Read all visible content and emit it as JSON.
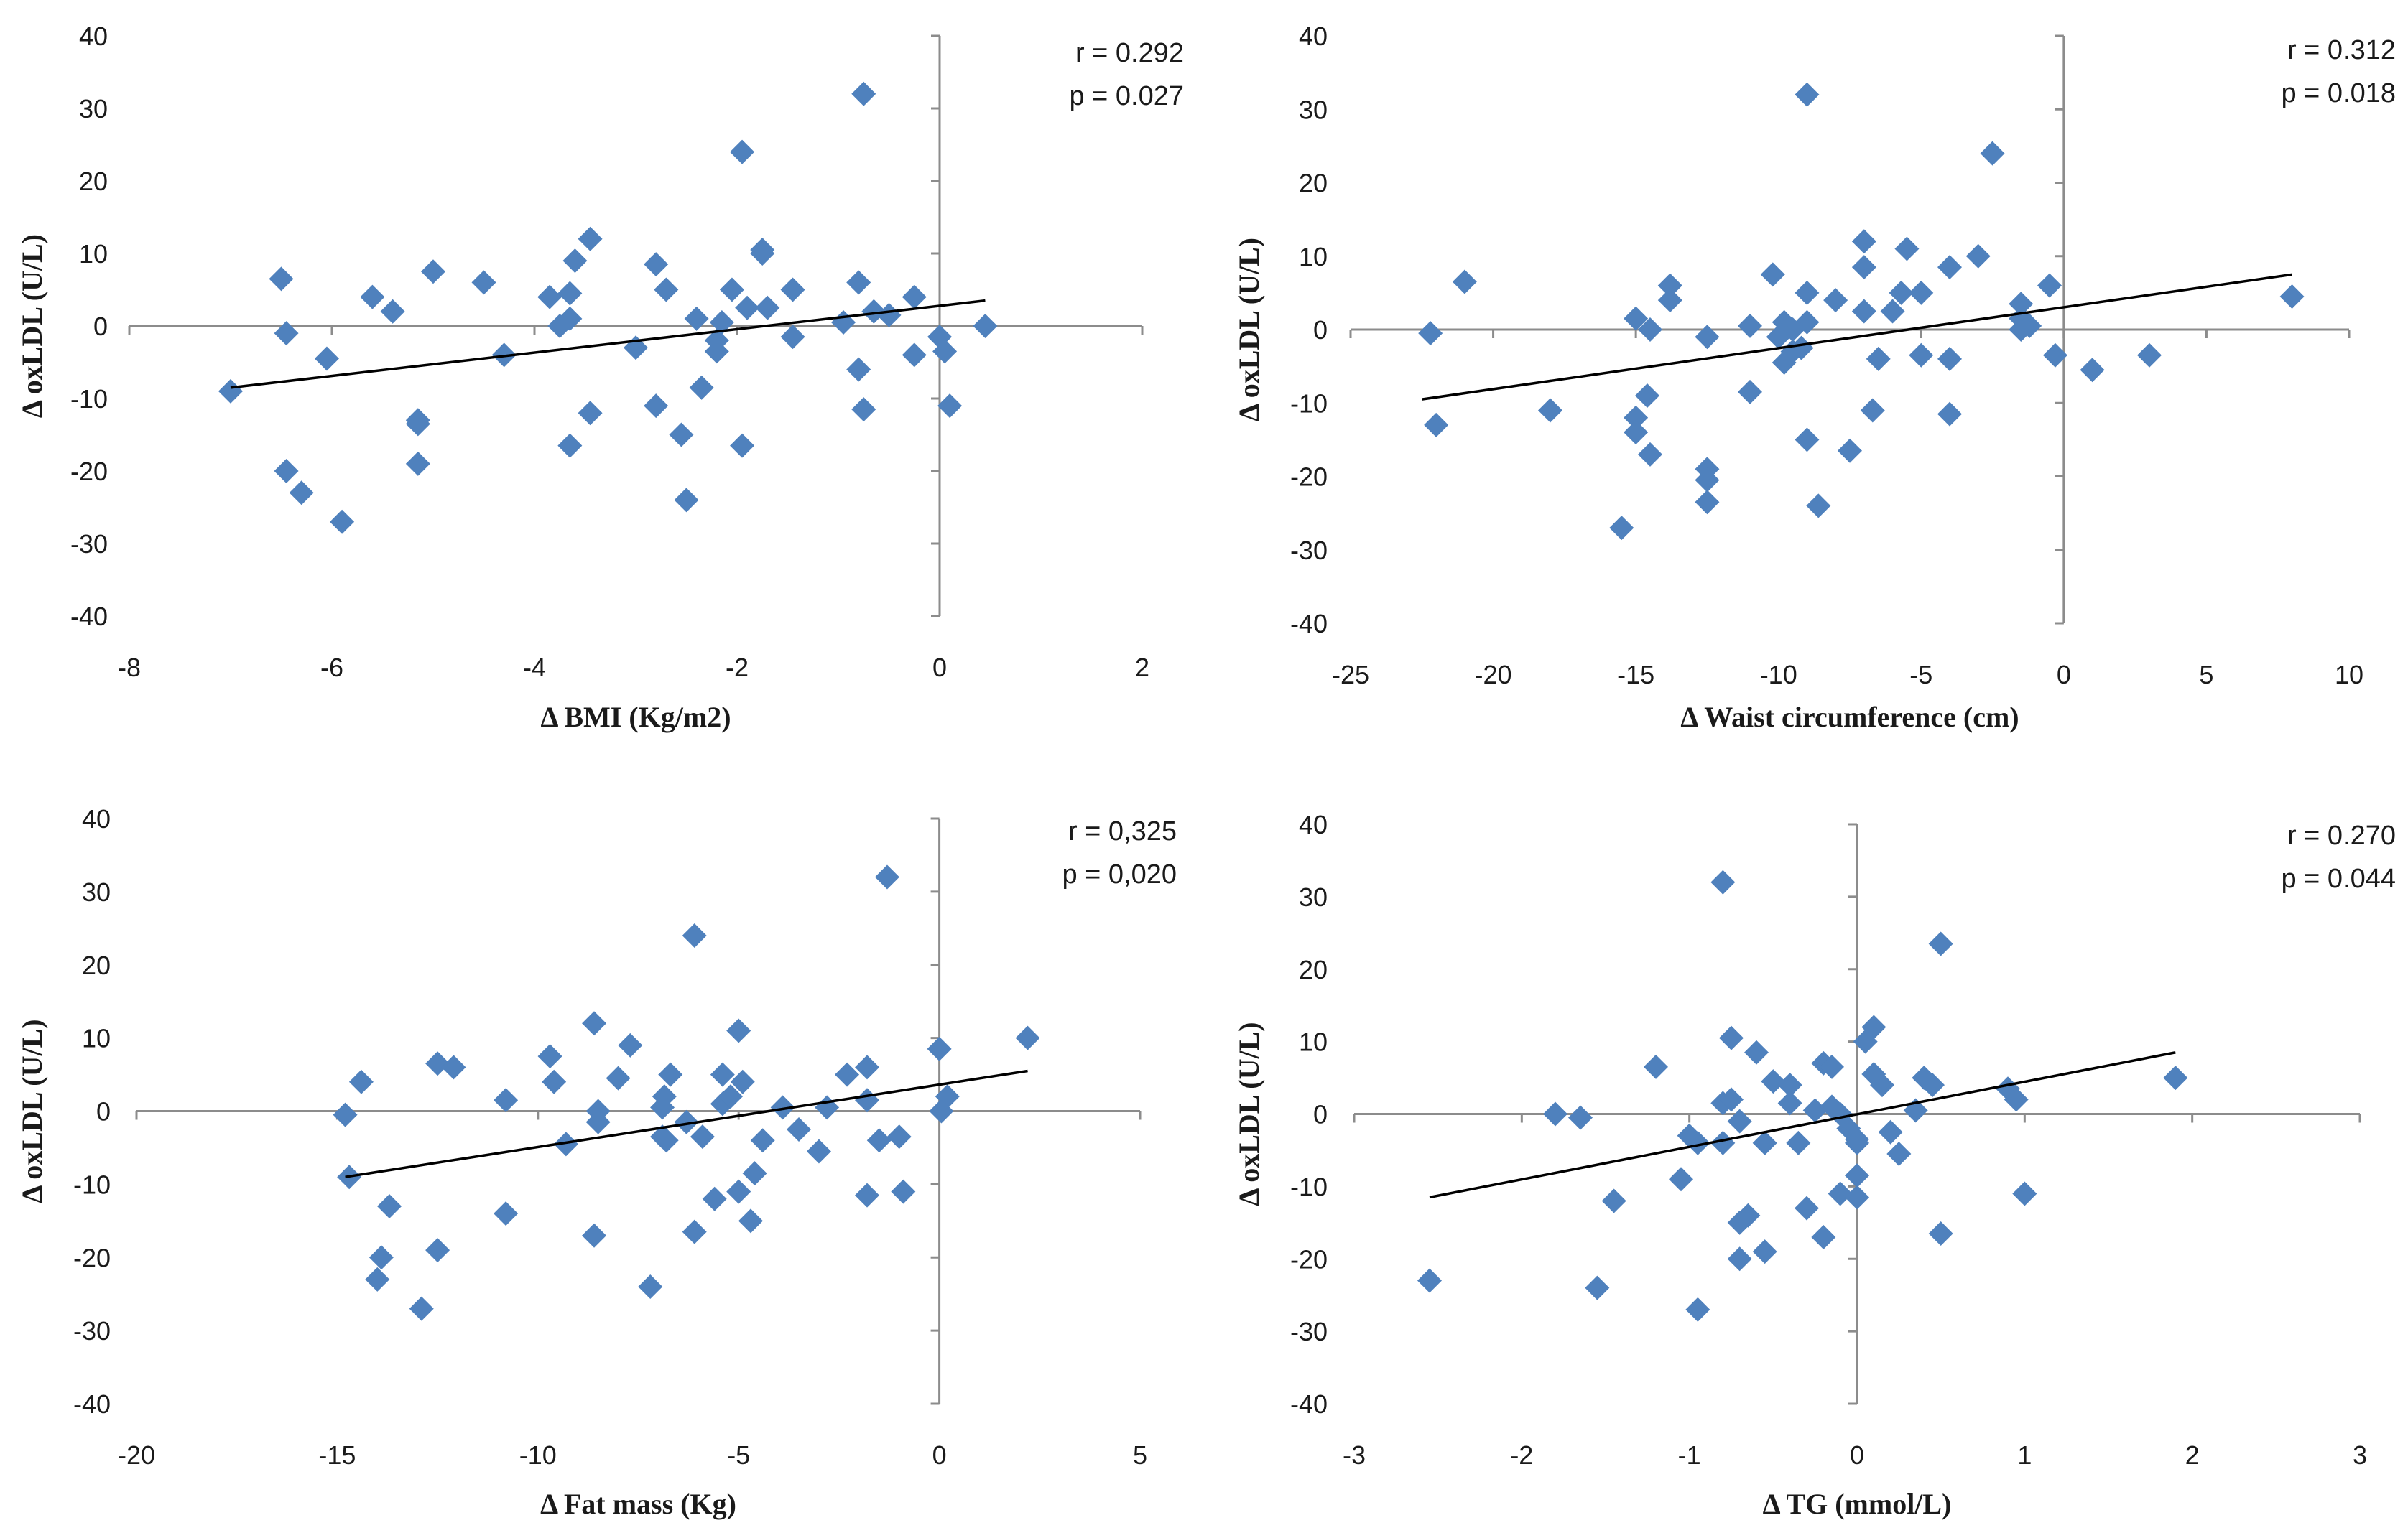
{
  "colors": {
    "marker": "#4f81bd",
    "trend": "#000000",
    "axis": "#8c8c8c"
  },
  "chart_data": [
    {
      "type": "scatter",
      "xlabel": "Δ BMI (Kg/m2)",
      "ylabel": "Δ oxLDL (U/L)",
      "xlim": [
        -8,
        2
      ],
      "ylim": [
        -40,
        40
      ],
      "xticks": [
        -8,
        -6,
        -4,
        -2,
        0,
        2
      ],
      "xtick_labels": [
        "-8",
        "-6",
        "-4",
        "-2",
        "0",
        "2"
      ],
      "yticks": [
        -40,
        -30,
        -20,
        -10,
        0,
        10,
        20,
        30,
        40
      ],
      "ytick_labels": [
        "-40",
        "-30",
        "-20",
        "-10",
        "0",
        "10",
        "20",
        "30",
        "40"
      ],
      "annotation": [
        "r = 0.292",
        "p = 0.027"
      ],
      "trendline": {
        "x": [
          -7.0,
          0.45
        ],
        "y": [
          -8.5,
          3.5
        ]
      },
      "points": [
        [
          -7.0,
          -9
        ],
        [
          -6.5,
          6.5
        ],
        [
          -6.45,
          -1
        ],
        [
          -6.45,
          -20
        ],
        [
          -6.3,
          -23
        ],
        [
          -6.05,
          -4.5
        ],
        [
          -5.9,
          -27
        ],
        [
          -5.6,
          4
        ],
        [
          -5.4,
          2
        ],
        [
          -5.15,
          -13
        ],
        [
          -5.15,
          -19
        ],
        [
          -5.15,
          -13.5
        ],
        [
          -5.0,
          7.5
        ],
        [
          -4.5,
          6
        ],
        [
          -4.3,
          -4
        ],
        [
          -3.85,
          4
        ],
        [
          -3.75,
          0
        ],
        [
          -3.65,
          1
        ],
        [
          -3.65,
          4.5
        ],
        [
          -3.65,
          -16.5
        ],
        [
          -3.6,
          9
        ],
        [
          -3.45,
          12
        ],
        [
          -3.45,
          -12
        ],
        [
          -3.0,
          -3
        ],
        [
          -2.8,
          8.5
        ],
        [
          -2.8,
          -11
        ],
        [
          -2.7,
          5
        ],
        [
          -2.55,
          -15
        ],
        [
          -2.5,
          -24
        ],
        [
          -2.4,
          1
        ],
        [
          -2.35,
          -8.5
        ],
        [
          -2.2,
          -2
        ],
        [
          -2.2,
          -3.5
        ],
        [
          -2.15,
          0.5
        ],
        [
          -2.05,
          5
        ],
        [
          -1.95,
          24
        ],
        [
          -1.95,
          -16.5
        ],
        [
          -1.9,
          2.5
        ],
        [
          -1.75,
          10.5
        ],
        [
          -1.75,
          10
        ],
        [
          -1.7,
          2.5
        ],
        [
          -1.45,
          5
        ],
        [
          -1.45,
          -1.5
        ],
        [
          -0.95,
          0.5
        ],
        [
          -0.8,
          -6
        ],
        [
          -0.8,
          6
        ],
        [
          -0.75,
          32
        ],
        [
          -0.75,
          -11.5
        ],
        [
          -0.65,
          2
        ],
        [
          -0.5,
          1.5
        ],
        [
          -0.25,
          4
        ],
        [
          -0.25,
          -4
        ],
        [
          0.0,
          -1.5
        ],
        [
          0.05,
          -3.5
        ],
        [
          0.1,
          -11
        ],
        [
          0.45,
          0
        ]
      ]
    },
    {
      "type": "scatter",
      "xlabel": "Δ Waist circumference (cm)",
      "ylabel": "Δ oxLDL (U/L)",
      "xlim": [
        -25,
        10
      ],
      "ylim": [
        -40,
        40
      ],
      "xticks": [
        -25,
        -20,
        -15,
        -10,
        -5,
        0,
        5,
        10
      ],
      "xtick_labels": [
        "-25",
        "-20",
        "-15",
        "-10",
        "-5",
        "0",
        "5",
        "10"
      ],
      "yticks": [
        -40,
        -30,
        -20,
        -10,
        0,
        10,
        20,
        30,
        40
      ],
      "ytick_labels": [
        "-40",
        "-30",
        "-20",
        "-10",
        "0",
        "10",
        "20",
        "30",
        "40"
      ],
      "annotation": [
        "r = 0.312",
        "p = 0.018"
      ],
      "trendline": {
        "x": [
          -22.5,
          8.0
        ],
        "y": [
          -9.5,
          7.5
        ]
      },
      "points": [
        [
          -22.2,
          -0.5
        ],
        [
          -22.0,
          -13
        ],
        [
          -21.0,
          6.5
        ],
        [
          -18.0,
          -11
        ],
        [
          -15.5,
          -27
        ],
        [
          -15.0,
          1.5
        ],
        [
          -15.0,
          -12
        ],
        [
          -15.0,
          -14
        ],
        [
          -14.6,
          -9
        ],
        [
          -14.5,
          0
        ],
        [
          -14.5,
          -17
        ],
        [
          -13.8,
          6
        ],
        [
          -13.8,
          4
        ],
        [
          -12.5,
          -1
        ],
        [
          -12.5,
          -19
        ],
        [
          -12.5,
          -20.5
        ],
        [
          -12.5,
          -23.5
        ],
        [
          -11.0,
          0.5
        ],
        [
          -11.0,
          -8.5
        ],
        [
          -10.2,
          7.5
        ],
        [
          -10.0,
          -1
        ],
        [
          -9.8,
          1
        ],
        [
          -9.8,
          -4.5
        ],
        [
          -9.5,
          0
        ],
        [
          -9.5,
          -3
        ],
        [
          -9.2,
          -2.5
        ],
        [
          -9.0,
          32
        ],
        [
          -9.0,
          5
        ],
        [
          -9.0,
          1
        ],
        [
          -9.0,
          -15
        ],
        [
          -8.6,
          -24
        ],
        [
          -8.0,
          4
        ],
        [
          -7.5,
          -16.5
        ],
        [
          -7.0,
          12
        ],
        [
          -7.0,
          8.5
        ],
        [
          -7.0,
          2.5
        ],
        [
          -6.7,
          -11
        ],
        [
          -6.5,
          -4
        ],
        [
          -6.0,
          2.5
        ],
        [
          -5.7,
          5
        ],
        [
          -5.5,
          11
        ],
        [
          -5.0,
          5
        ],
        [
          -5.0,
          -3.5
        ],
        [
          -4.0,
          8.5
        ],
        [
          -4.0,
          -4
        ],
        [
          -4.0,
          -11.5
        ],
        [
          -3.0,
          10
        ],
        [
          -2.5,
          24
        ],
        [
          -1.5,
          0
        ],
        [
          -1.5,
          3.5
        ],
        [
          -1.5,
          1.5
        ],
        [
          -1.2,
          0.5
        ],
        [
          -0.5,
          6
        ],
        [
          -0.3,
          -3.5
        ],
        [
          1.0,
          -5.5
        ],
        [
          3.0,
          -3.5
        ],
        [
          8.0,
          4.5
        ]
      ]
    },
    {
      "type": "scatter",
      "xlabel": "Δ Fat mass (Kg)",
      "ylabel": "Δ oxLDL (U/L)",
      "xlim": [
        -20,
        5
      ],
      "ylim": [
        -40,
        40
      ],
      "xticks": [
        -20,
        -15,
        -10,
        -5,
        0,
        5
      ],
      "xtick_labels": [
        "-20",
        "-15",
        "-10",
        "-5",
        "0",
        "5"
      ],
      "yticks": [
        -40,
        -30,
        -20,
        -10,
        0,
        10,
        20,
        30,
        40
      ],
      "ytick_labels": [
        "-40",
        "-30",
        "-20",
        "-10",
        "0",
        "10",
        "20",
        "30",
        "40"
      ],
      "annotation": [
        "r = 0,325",
        "p = 0,020"
      ],
      "trendline": {
        "x": [
          -14.8,
          2.2
        ],
        "y": [
          -9.0,
          5.5
        ]
      },
      "points": [
        [
          -14.8,
          -0.5
        ],
        [
          -14.7,
          -9
        ],
        [
          -14.4,
          4
        ],
        [
          -14.0,
          -23
        ],
        [
          -13.9,
          -20
        ],
        [
          -13.7,
          -13
        ],
        [
          -12.9,
          -27
        ],
        [
          -12.5,
          6.5
        ],
        [
          -12.5,
          -19
        ],
        [
          -12.1,
          6
        ],
        [
          -10.8,
          1.5
        ],
        [
          -10.8,
          -14
        ],
        [
          -9.7,
          7.5
        ],
        [
          -9.6,
          4
        ],
        [
          -9.3,
          -4.5
        ],
        [
          -8.6,
          12
        ],
        [
          -8.6,
          -17
        ],
        [
          -8.5,
          0
        ],
        [
          -8.5,
          -1.5
        ],
        [
          -8.0,
          4.5
        ],
        [
          -7.7,
          9
        ],
        [
          -7.2,
          -24
        ],
        [
          -6.9,
          0.5
        ],
        [
          -6.9,
          -3.5
        ],
        [
          -6.85,
          2
        ],
        [
          -6.8,
          -4
        ],
        [
          -6.7,
          5
        ],
        [
          -6.3,
          -1.5
        ],
        [
          -6.1,
          24
        ],
        [
          -6.1,
          -16.5
        ],
        [
          -5.9,
          -3.5
        ],
        [
          -5.6,
          -12
        ],
        [
          -5.4,
          5
        ],
        [
          -5.4,
          1
        ],
        [
          -5.2,
          2
        ],
        [
          -5.0,
          11
        ],
        [
          -5.0,
          -11
        ],
        [
          -4.9,
          4
        ],
        [
          -4.7,
          -15
        ],
        [
          -4.6,
          -8.5
        ],
        [
          -4.4,
          -4
        ],
        [
          -3.9,
          0.5
        ],
        [
          -3.5,
          -2.5
        ],
        [
          -3.0,
          -5.5
        ],
        [
          -2.8,
          0.5
        ],
        [
          -2.3,
          5
        ],
        [
          -1.8,
          6
        ],
        [
          -1.8,
          1.5
        ],
        [
          -1.8,
          -11.5
        ],
        [
          -1.5,
          -4
        ],
        [
          -1.3,
          32
        ],
        [
          -1.0,
          -3.5
        ],
        [
          -0.9,
          -11
        ],
        [
          0.0,
          8.5
        ],
        [
          0.05,
          0
        ],
        [
          0.2,
          2
        ],
        [
          2.2,
          10
        ]
      ]
    },
    {
      "type": "scatter",
      "xlabel": "Δ TG (mmol/L)",
      "ylabel": "Δ oxLDL (U/L)",
      "xlim": [
        -3,
        3
      ],
      "ylim": [
        -40,
        40
      ],
      "xticks": [
        -3,
        -2,
        -1,
        0,
        1,
        2,
        3
      ],
      "xtick_labels": [
        "-3",
        "-2",
        "-1",
        "0",
        "1",
        "2",
        "3"
      ],
      "yticks": [
        -40,
        -30,
        -20,
        -10,
        0,
        10,
        20,
        30,
        40
      ],
      "ytick_labels": [
        "-40",
        "-30",
        "-20",
        "-10",
        "0",
        "10",
        "20",
        "30",
        "40"
      ],
      "annotation": [
        "r = 0.270",
        "p = 0.044"
      ],
      "trendline": {
        "x": [
          -2.55,
          1.9
        ],
        "y": [
          -11.5,
          8.5
        ]
      },
      "points": [
        [
          -2.55,
          -23
        ],
        [
          -1.8,
          0
        ],
        [
          -1.65,
          -0.5
        ],
        [
          -1.55,
          -24
        ],
        [
          -1.45,
          -12
        ],
        [
          -1.2,
          6.5
        ],
        [
          -1.05,
          -9
        ],
        [
          -1.0,
          -3
        ],
        [
          -0.95,
          -4
        ],
        [
          -0.95,
          -27
        ],
        [
          -0.8,
          32
        ],
        [
          -0.8,
          1.5
        ],
        [
          -0.8,
          -4
        ],
        [
          -0.75,
          10.5
        ],
        [
          -0.75,
          2
        ],
        [
          -0.7,
          -1
        ],
        [
          -0.7,
          -15
        ],
        [
          -0.7,
          -20
        ],
        [
          -0.65,
          -14
        ],
        [
          -0.6,
          8.5
        ],
        [
          -0.55,
          -19
        ],
        [
          -0.55,
          -4
        ],
        [
          -0.5,
          4.5
        ],
        [
          -0.4,
          1.5
        ],
        [
          -0.4,
          4
        ],
        [
          -0.35,
          -4
        ],
        [
          -0.3,
          -13
        ],
        [
          -0.25,
          0.5
        ],
        [
          -0.2,
          7
        ],
        [
          -0.2,
          -17
        ],
        [
          -0.15,
          6.5
        ],
        [
          -0.15,
          1
        ],
        [
          -0.1,
          -11
        ],
        [
          -0.1,
          0
        ],
        [
          -0.05,
          -2
        ],
        [
          0.0,
          -3.5
        ],
        [
          0.0,
          -8.5
        ],
        [
          0.0,
          -11.5
        ],
        [
          0.0,
          -4
        ],
        [
          0.05,
          10
        ],
        [
          0.1,
          12
        ],
        [
          0.1,
          5.5
        ],
        [
          0.15,
          4
        ],
        [
          0.2,
          -2.5
        ],
        [
          0.25,
          -5.5
        ],
        [
          0.35,
          0.5
        ],
        [
          0.4,
          5
        ],
        [
          0.45,
          4
        ],
        [
          0.5,
          23.5
        ],
        [
          0.5,
          -16.5
        ],
        [
          0.9,
          3.5
        ],
        [
          0.95,
          2
        ],
        [
          1.0,
          -11
        ],
        [
          1.9,
          5
        ]
      ]
    }
  ]
}
